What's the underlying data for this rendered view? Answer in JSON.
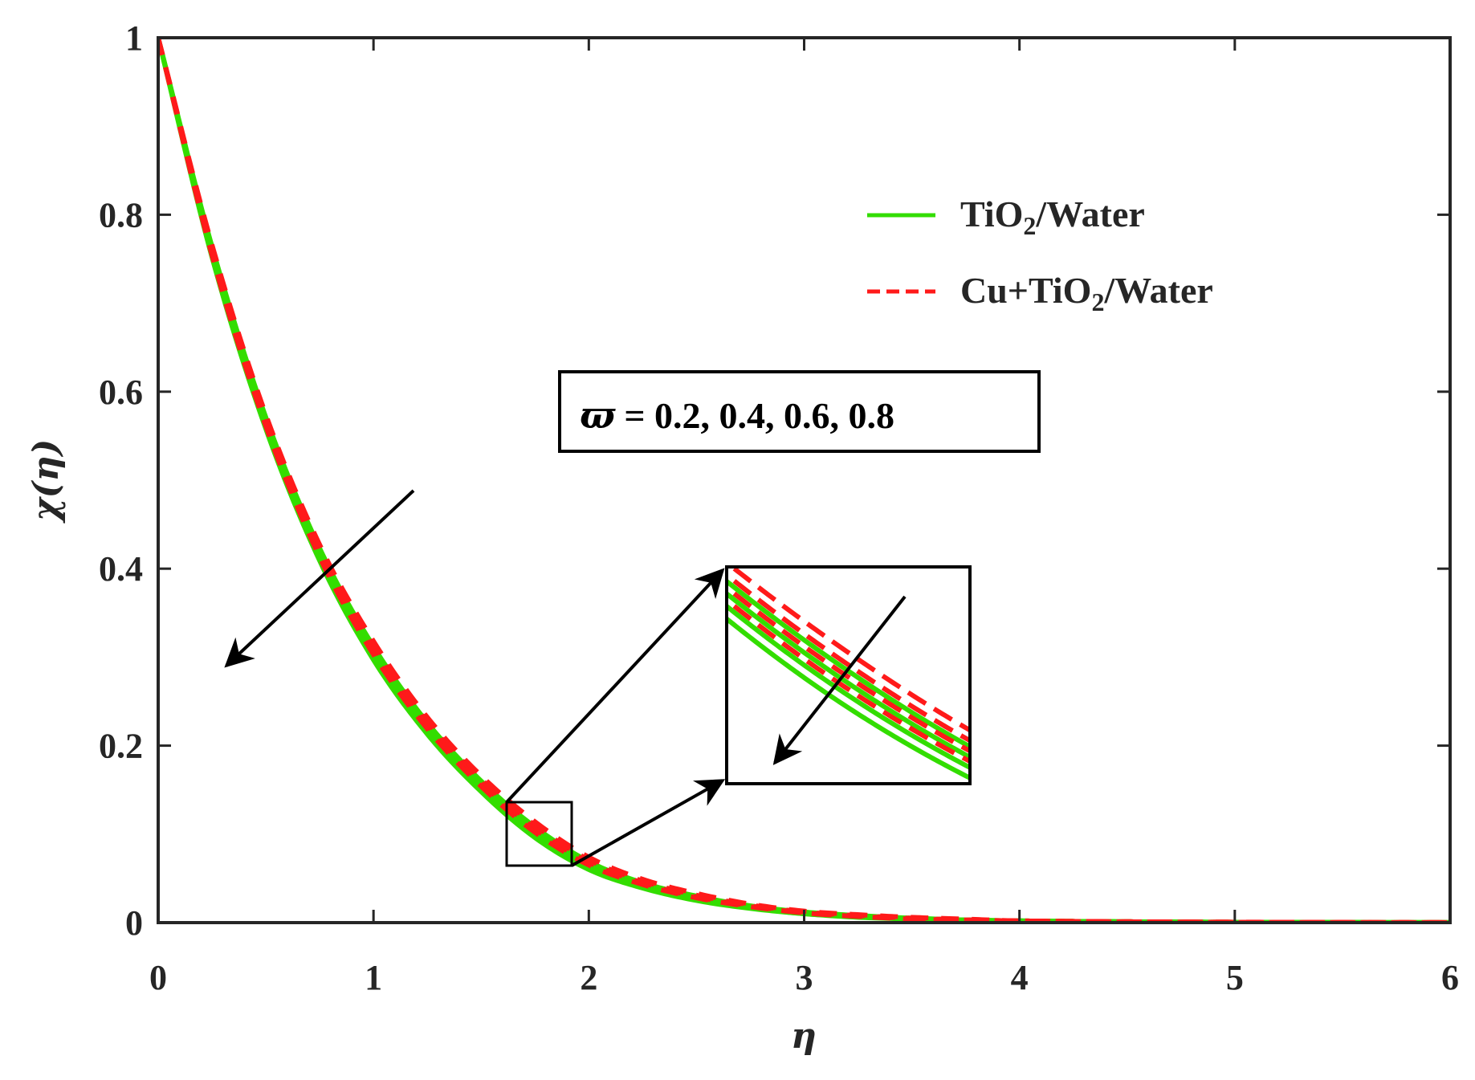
{
  "chart_data": {
    "type": "line",
    "xlabel": "η",
    "ylabel": "χ(η)",
    "xlim": [
      0,
      6
    ],
    "ylim": [
      0,
      1
    ],
    "xticks": [
      "0",
      "1",
      "2",
      "3",
      "4",
      "5",
      "6"
    ],
    "yticks": [
      "0",
      "0.2",
      "0.4",
      "0.6",
      "0.8",
      "1"
    ],
    "grid": false,
    "legend_position": "top-right",
    "legend": [
      {
        "base": "TiO",
        "sub": "2",
        "rest": "/Water",
        "color": "#33dd00",
        "style": "solid"
      },
      {
        "base": "Cu+TiO",
        "sub": "2",
        "rest": "/Water",
        "color": "#ff1a1a",
        "style": "dashed"
      }
    ],
    "annotation": {
      "symbol": "ϖ",
      "text": " = 0.2, 0.4, 0.6, 0.8"
    },
    "x": [
      0,
      0.25,
      0.5,
      0.75,
      1.0,
      1.25,
      1.5,
      1.75,
      2.0,
      2.25,
      2.5,
      2.75,
      3.0,
      3.25,
      3.5,
      3.75,
      4.0,
      4.5,
      5.0,
      5.5,
      6.0
    ],
    "series": [
      {
        "group": "TiO2/Water",
        "varpi": 0.2,
        "y": [
          1,
          0.764,
          0.571,
          0.423,
          0.312,
          0.226,
          0.16,
          0.108,
          0.069,
          0.045,
          0.03,
          0.019,
          0.012,
          0.008,
          0.005,
          0.003,
          0.002,
          0.001,
          0.0005,
          0.0002,
          0.0001
        ]
      },
      {
        "group": "TiO2/Water",
        "varpi": 0.4,
        "y": [
          1,
          0.76,
          0.567,
          0.418,
          0.307,
          0.221,
          0.156,
          0.104,
          0.066,
          0.043,
          0.028,
          0.018,
          0.011,
          0.007,
          0.005,
          0.003,
          0.002,
          0.001,
          0.0005,
          0.0002,
          0.0001
        ]
      },
      {
        "group": "TiO2/Water",
        "varpi": 0.6,
        "y": [
          1,
          0.756,
          0.562,
          0.414,
          0.302,
          0.217,
          0.152,
          0.1,
          0.063,
          0.041,
          0.027,
          0.017,
          0.01,
          0.007,
          0.004,
          0.003,
          0.002,
          0.001,
          0.0004,
          0.0002,
          0.0001
        ]
      },
      {
        "group": "TiO2/Water",
        "varpi": 0.8,
        "y": [
          1,
          0.752,
          0.558,
          0.409,
          0.297,
          0.213,
          0.148,
          0.096,
          0.06,
          0.039,
          0.025,
          0.016,
          0.01,
          0.006,
          0.004,
          0.002,
          0.001,
          0.0008,
          0.0004,
          0.0002,
          0.0001
        ]
      },
      {
        "group": "Cu+TiO2/Water",
        "varpi": 0.2,
        "y": [
          1,
          0.766,
          0.574,
          0.427,
          0.318,
          0.232,
          0.166,
          0.114,
          0.074,
          0.049,
          0.033,
          0.021,
          0.013,
          0.009,
          0.006,
          0.004,
          0.002,
          0.001,
          0.0006,
          0.0003,
          0.0001
        ]
      },
      {
        "group": "Cu+TiO2/Water",
        "varpi": 0.4,
        "y": [
          1,
          0.762,
          0.57,
          0.422,
          0.313,
          0.227,
          0.162,
          0.11,
          0.071,
          0.047,
          0.031,
          0.02,
          0.012,
          0.008,
          0.005,
          0.003,
          0.002,
          0.001,
          0.0005,
          0.0002,
          0.0001
        ]
      },
      {
        "group": "Cu+TiO2/Water",
        "varpi": 0.6,
        "y": [
          1,
          0.758,
          0.565,
          0.418,
          0.308,
          0.223,
          0.158,
          0.106,
          0.068,
          0.045,
          0.029,
          0.019,
          0.011,
          0.007,
          0.005,
          0.003,
          0.002,
          0.001,
          0.0005,
          0.0002,
          0.0001
        ]
      },
      {
        "group": "Cu+TiO2/Water",
        "varpi": 0.8,
        "y": [
          1,
          0.754,
          0.561,
          0.413,
          0.303,
          0.219,
          0.154,
          0.102,
          0.065,
          0.043,
          0.028,
          0.018,
          0.011,
          0.007,
          0.004,
          0.003,
          0.002,
          0.001,
          0.0004,
          0.0002,
          0.0001
        ]
      }
    ],
    "inset": {
      "xlim": [
        1.62,
        1.92
      ],
      "ylim": [
        0.068,
        0.138
      ]
    }
  }
}
